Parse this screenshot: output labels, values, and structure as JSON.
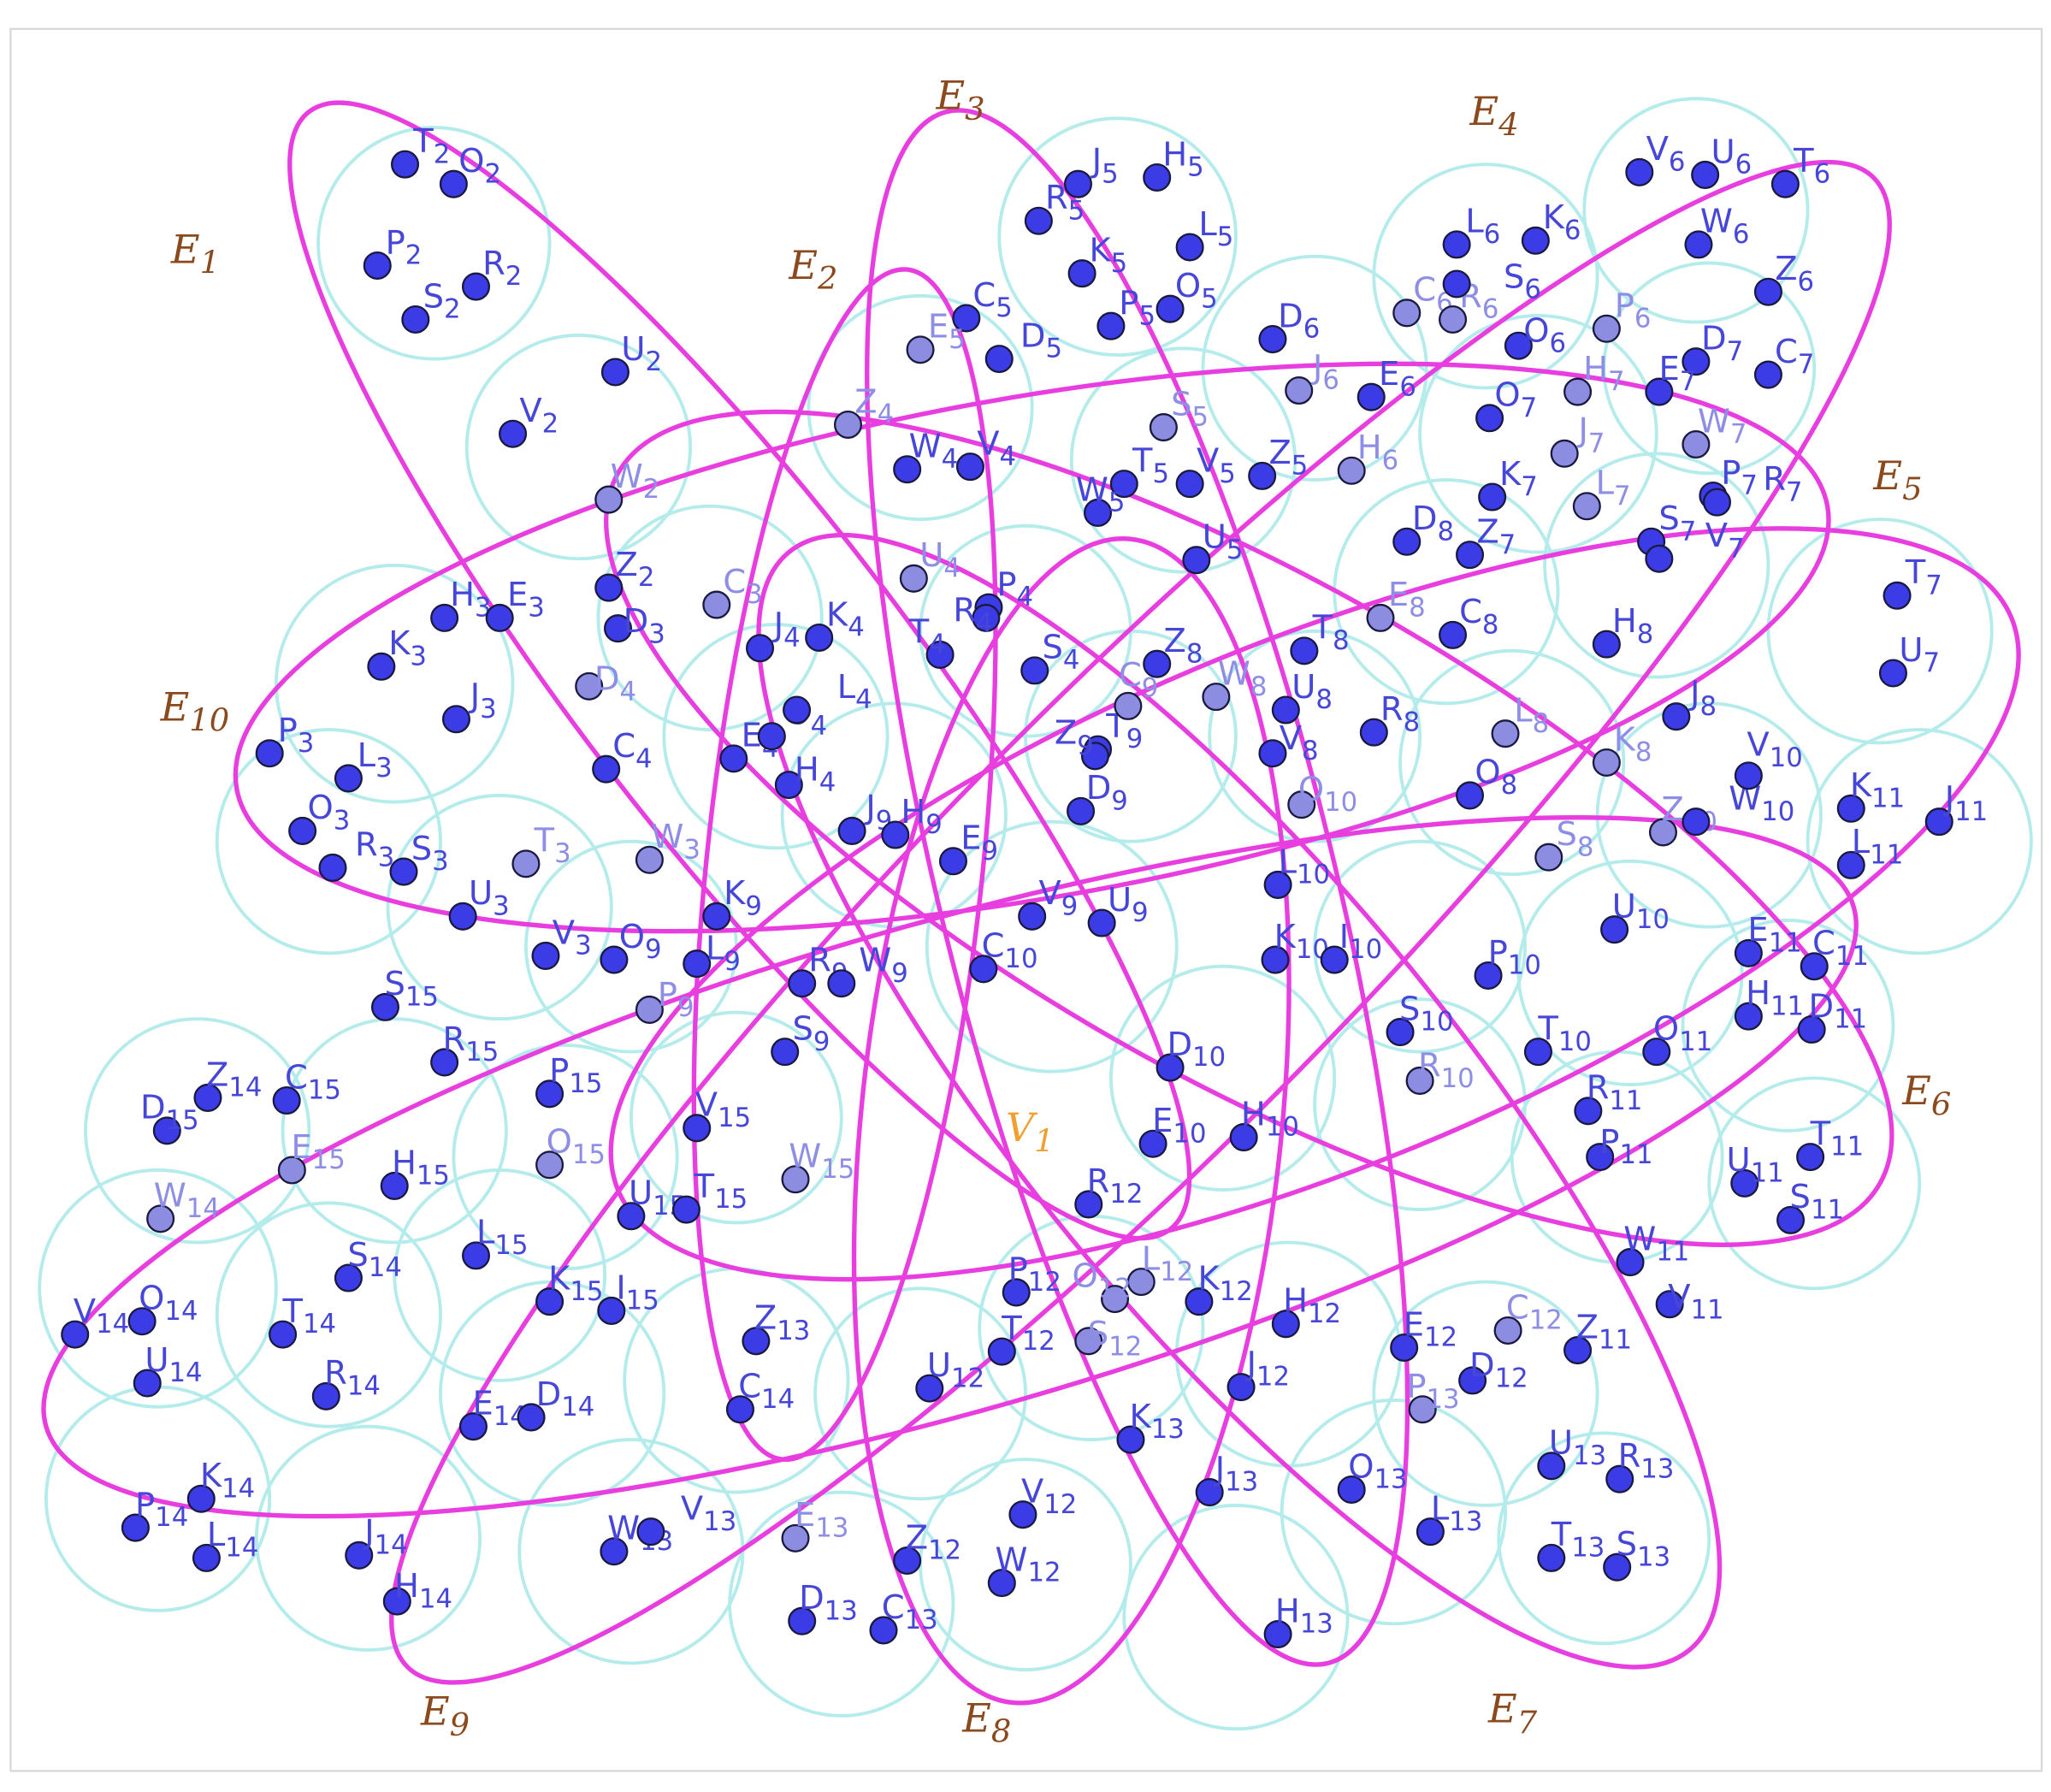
{
  "colors": {
    "hyperedge": "#e83ee0",
    "neighborhood_circle": "#b4ebeb",
    "vertex_dark": "#3c3ce6",
    "vertex_light": "#8c8ce0",
    "label_dark": "#4646d8",
    "label_light": "#8e8ee6",
    "edge_label": "#8b4a1e",
    "center_label": "#f0a030"
  },
  "edges": [
    {
      "letter": "E",
      "index": "1"
    },
    {
      "letter": "E",
      "index": "2"
    },
    {
      "letter": "E",
      "index": "3"
    },
    {
      "letter": "E",
      "index": "4"
    },
    {
      "letter": "E",
      "index": "5"
    },
    {
      "letter": "E",
      "index": "6"
    },
    {
      "letter": "E",
      "index": "7"
    },
    {
      "letter": "E",
      "index": "8"
    },
    {
      "letter": "E",
      "index": "9"
    },
    {
      "letter": "E",
      "index": "10"
    }
  ],
  "center_vertex": {
    "letter": "V",
    "index": "1"
  },
  "vertices": [
    {
      "letter": "T",
      "index": "2",
      "shade": "dark"
    },
    {
      "letter": "O",
      "index": "2",
      "shade": "dark"
    },
    {
      "letter": "P",
      "index": "2",
      "shade": "dark"
    },
    {
      "letter": "S",
      "index": "2",
      "shade": "dark"
    },
    {
      "letter": "R",
      "index": "2",
      "shade": "dark"
    },
    {
      "letter": "U",
      "index": "2",
      "shade": "dark"
    },
    {
      "letter": "V",
      "index": "2",
      "shade": "dark"
    },
    {
      "letter": "W",
      "index": "2",
      "shade": "light"
    },
    {
      "letter": "Z",
      "index": "2",
      "shade": "dark"
    },
    {
      "letter": "D",
      "index": "3",
      "shade": "dark"
    },
    {
      "letter": "D",
      "index": "4",
      "shade": "light"
    },
    {
      "letter": "H",
      "index": "3",
      "shade": "dark"
    },
    {
      "letter": "E",
      "index": "3",
      "shade": "dark"
    },
    {
      "letter": "K",
      "index": "3",
      "shade": "dark"
    },
    {
      "letter": "J",
      "index": "3",
      "shade": "dark"
    },
    {
      "letter": "P",
      "index": "3",
      "shade": "dark"
    },
    {
      "letter": "L",
      "index": "3",
      "shade": "dark"
    },
    {
      "letter": "O",
      "index": "3",
      "shade": "dark"
    },
    {
      "letter": "R",
      "index": "3",
      "shade": "dark"
    },
    {
      "letter": "S",
      "index": "3",
      "shade": "dark"
    },
    {
      "letter": "U",
      "index": "3",
      "shade": "dark"
    },
    {
      "letter": "T",
      "index": "3",
      "shade": "light"
    },
    {
      "letter": "V",
      "index": "3",
      "shade": "dark"
    },
    {
      "letter": "W",
      "index": "3",
      "shade": "light"
    },
    {
      "letter": "C",
      "index": "3",
      "shade": "light"
    },
    {
      "letter": "C",
      "index": "4",
      "shade": "dark"
    },
    {
      "letter": "E",
      "index": "4",
      "shade": "dark"
    },
    {
      "letter": "O",
      "index": "4",
      "shade": "dark"
    },
    {
      "letter": "L",
      "index": "4",
      "shade": "dark"
    },
    {
      "letter": "H",
      "index": "4",
      "shade": "dark"
    },
    {
      "letter": "J",
      "index": "4",
      "shade": "dark"
    },
    {
      "letter": "K",
      "index": "4",
      "shade": "dark"
    },
    {
      "letter": "Z",
      "index": "4",
      "shade": "light"
    },
    {
      "letter": "W",
      "index": "4",
      "shade": "dark"
    },
    {
      "letter": "V",
      "index": "4",
      "shade": "dark"
    },
    {
      "letter": "U",
      "index": "4",
      "shade": "light"
    },
    {
      "letter": "P",
      "index": "4",
      "shade": "dark"
    },
    {
      "letter": "R",
      "index": "4",
      "shade": "dark"
    },
    {
      "letter": "T",
      "index": "4",
      "shade": "dark"
    },
    {
      "letter": "S",
      "index": "4",
      "shade": "dark"
    },
    {
      "letter": "J",
      "index": "5",
      "shade": "dark"
    },
    {
      "letter": "H",
      "index": "5",
      "shade": "dark"
    },
    {
      "letter": "R",
      "index": "5",
      "shade": "dark"
    },
    {
      "letter": "K",
      "index": "5",
      "shade": "dark"
    },
    {
      "letter": "L",
      "index": "5",
      "shade": "dark"
    },
    {
      "letter": "O",
      "index": "5",
      "shade": "dark"
    },
    {
      "letter": "P",
      "index": "5",
      "shade": "dark"
    },
    {
      "letter": "C",
      "index": "5",
      "shade": "dark"
    },
    {
      "letter": "E",
      "index": "5",
      "shade": "light"
    },
    {
      "letter": "D",
      "index": "5",
      "shade": "dark"
    },
    {
      "letter": "S",
      "index": "5",
      "shade": "light"
    },
    {
      "letter": "T",
      "index": "5",
      "shade": "dark"
    },
    {
      "letter": "V",
      "index": "5",
      "shade": "dark"
    },
    {
      "letter": "W",
      "index": "5",
      "shade": "dark"
    },
    {
      "letter": "Z",
      "index": "5",
      "shade": "dark"
    },
    {
      "letter": "U",
      "index": "5",
      "shade": "dark"
    },
    {
      "letter": "V",
      "index": "6",
      "shade": "dark"
    },
    {
      "letter": "U",
      "index": "6",
      "shade": "dark"
    },
    {
      "letter": "T",
      "index": "6",
      "shade": "dark"
    },
    {
      "letter": "W",
      "index": "6",
      "shade": "dark"
    },
    {
      "letter": "L",
      "index": "6",
      "shade": "dark"
    },
    {
      "letter": "K",
      "index": "6",
      "shade": "dark"
    },
    {
      "letter": "Z",
      "index": "6",
      "shade": "dark"
    },
    {
      "letter": "D",
      "index": "6",
      "shade": "dark"
    },
    {
      "letter": "C",
      "index": "6",
      "shade": "light"
    },
    {
      "letter": "R",
      "index": "6",
      "shade": "light"
    },
    {
      "letter": "S",
      "index": "6",
      "shade": "dark"
    },
    {
      "letter": "O",
      "index": "6",
      "shade": "dark"
    },
    {
      "letter": "J",
      "index": "6",
      "shade": "light"
    },
    {
      "letter": "E",
      "index": "6",
      "shade": "dark"
    },
    {
      "letter": "H",
      "index": "6",
      "shade": "light"
    },
    {
      "letter": "P",
      "index": "6",
      "shade": "light"
    },
    {
      "letter": "D",
      "index": "7",
      "shade": "dark"
    },
    {
      "letter": "C",
      "index": "7",
      "shade": "dark"
    },
    {
      "letter": "H",
      "index": "7",
      "shade": "light"
    },
    {
      "letter": "E",
      "index": "7",
      "shade": "dark"
    },
    {
      "letter": "O",
      "index": "7",
      "shade": "dark"
    },
    {
      "letter": "W",
      "index": "7",
      "shade": "light"
    },
    {
      "letter": "J",
      "index": "7",
      "shade": "light"
    },
    {
      "letter": "K",
      "index": "7",
      "shade": "dark"
    },
    {
      "letter": "L",
      "index": "7",
      "shade": "light"
    },
    {
      "letter": "P",
      "index": "7",
      "shade": "dark"
    },
    {
      "letter": "S",
      "index": "7",
      "shade": "dark"
    },
    {
      "letter": "R",
      "index": "7",
      "shade": "dark"
    },
    {
      "letter": "V",
      "index": "7",
      "shade": "dark"
    },
    {
      "letter": "Z",
      "index": "7",
      "shade": "dark"
    },
    {
      "letter": "T",
      "index": "7",
      "shade": "dark"
    },
    {
      "letter": "U",
      "index": "7",
      "shade": "dark"
    },
    {
      "letter": "D",
      "index": "8",
      "shade": "dark"
    },
    {
      "letter": "E",
      "index": "8",
      "shade": "light"
    },
    {
      "letter": "C",
      "index": "8",
      "shade": "dark"
    },
    {
      "letter": "H",
      "index": "8",
      "shade": "dark"
    },
    {
      "letter": "J",
      "index": "8",
      "shade": "dark"
    },
    {
      "letter": "K",
      "index": "8",
      "shade": "light"
    },
    {
      "letter": "T",
      "index": "8",
      "shade": "dark"
    },
    {
      "letter": "U",
      "index": "8",
      "shade": "dark"
    },
    {
      "letter": "W",
      "index": "8",
      "shade": "light"
    },
    {
      "letter": "R",
      "index": "8",
      "shade": "dark"
    },
    {
      "letter": "L",
      "index": "8",
      "shade": "light"
    },
    {
      "letter": "O",
      "index": "8",
      "shade": "dark"
    },
    {
      "letter": "V",
      "index": "8",
      "shade": "dark"
    },
    {
      "letter": "S",
      "index": "8",
      "shade": "light"
    },
    {
      "letter": "Z",
      "index": "8",
      "shade": "dark"
    },
    {
      "letter": "T",
      "index": "9",
      "shade": "dark"
    },
    {
      "letter": "C",
      "index": "9",
      "shade": "light"
    },
    {
      "letter": "Z",
      "index": "9",
      "shade": "dark"
    },
    {
      "letter": "D",
      "index": "9",
      "shade": "dark"
    },
    {
      "letter": "J",
      "index": "9",
      "shade": "dark"
    },
    {
      "letter": "H",
      "index": "9",
      "shade": "dark"
    },
    {
      "letter": "E",
      "index": "9",
      "shade": "dark"
    },
    {
      "letter": "K",
      "index": "9",
      "shade": "dark"
    },
    {
      "letter": "L",
      "index": "9",
      "shade": "dark"
    },
    {
      "letter": "O",
      "index": "9",
      "shade": "dark"
    },
    {
      "letter": "P",
      "index": "9",
      "shade": "light"
    },
    {
      "letter": "R",
      "index": "9",
      "shade": "dark"
    },
    {
      "letter": "W",
      "index": "9",
      "shade": "dark"
    },
    {
      "letter": "S",
      "index": "9",
      "shade": "dark"
    },
    {
      "letter": "U",
      "index": "9",
      "shade": "dark"
    },
    {
      "letter": "V",
      "index": "9",
      "shade": "dark"
    },
    {
      "letter": "C",
      "index": "10",
      "shade": "dark"
    },
    {
      "letter": "O",
      "index": "10",
      "shade": "light"
    },
    {
      "letter": "Z",
      "index": "10",
      "shade": "light"
    },
    {
      "letter": "W",
      "index": "10",
      "shade": "dark"
    },
    {
      "letter": "V",
      "index": "10",
      "shade": "dark"
    },
    {
      "letter": "U",
      "index": "10",
      "shade": "dark"
    },
    {
      "letter": "L",
      "index": "10",
      "shade": "dark"
    },
    {
      "letter": "K",
      "index": "10",
      "shade": "dark"
    },
    {
      "letter": "I",
      "index": "10",
      "shade": "dark"
    },
    {
      "letter": "P",
      "index": "10",
      "shade": "dark"
    },
    {
      "letter": "S",
      "index": "10",
      "shade": "dark"
    },
    {
      "letter": "R",
      "index": "10",
      "shade": "light"
    },
    {
      "letter": "T",
      "index": "10",
      "shade": "dark"
    },
    {
      "letter": "D",
      "index": "10",
      "shade": "dark"
    },
    {
      "letter": "E",
      "index": "10",
      "shade": "dark"
    },
    {
      "letter": "H",
      "index": "10",
      "shade": "dark"
    },
    {
      "letter": "K",
      "index": "11",
      "shade": "dark"
    },
    {
      "letter": "J",
      "index": "11",
      "shade": "dark"
    },
    {
      "letter": "L",
      "index": "11",
      "shade": "dark"
    },
    {
      "letter": "E",
      "index": "11",
      "shade": "dark"
    },
    {
      "letter": "C",
      "index": "11",
      "shade": "dark"
    },
    {
      "letter": "H",
      "index": "11",
      "shade": "dark"
    },
    {
      "letter": "D",
      "index": "11",
      "shade": "dark"
    },
    {
      "letter": "O",
      "index": "11",
      "shade": "dark"
    },
    {
      "letter": "R",
      "index": "11",
      "shade": "dark"
    },
    {
      "letter": "P",
      "index": "11",
      "shade": "dark"
    },
    {
      "letter": "S",
      "index": "11",
      "shade": "dark"
    },
    {
      "letter": "U",
      "index": "11",
      "shade": "dark"
    },
    {
      "letter": "T",
      "index": "11",
      "shade": "dark"
    },
    {
      "letter": "W",
      "index": "11",
      "shade": "dark"
    },
    {
      "letter": "V",
      "index": "11",
      "shade": "dark"
    },
    {
      "letter": "Z",
      "index": "11",
      "shade": "dark"
    },
    {
      "letter": "C",
      "index": "12",
      "shade": "light"
    },
    {
      "letter": "E",
      "index": "12",
      "shade": "dark"
    },
    {
      "letter": "D",
      "index": "12",
      "shade": "dark"
    },
    {
      "letter": "H",
      "index": "12",
      "shade": "dark"
    },
    {
      "letter": "J",
      "index": "12",
      "shade": "dark"
    },
    {
      "letter": "K",
      "index": "12",
      "shade": "dark"
    },
    {
      "letter": "L",
      "index": "12",
      "shade": "light"
    },
    {
      "letter": "O",
      "index": "12",
      "shade": "light"
    },
    {
      "letter": "P",
      "index": "12",
      "shade": "dark"
    },
    {
      "letter": "S",
      "index": "12",
      "shade": "light"
    },
    {
      "letter": "T",
      "index": "12",
      "shade": "dark"
    },
    {
      "letter": "U",
      "index": "12",
      "shade": "dark"
    },
    {
      "letter": "R",
      "index": "12",
      "shade": "dark"
    },
    {
      "letter": "V",
      "index": "12",
      "shade": "dark"
    },
    {
      "letter": "W",
      "index": "12",
      "shade": "dark"
    },
    {
      "letter": "Z",
      "index": "12",
      "shade": "dark"
    },
    {
      "letter": "P",
      "index": "13",
      "shade": "light"
    },
    {
      "letter": "K",
      "index": "13",
      "shade": "dark"
    },
    {
      "letter": "J",
      "index": "13",
      "shade": "dark"
    },
    {
      "letter": "O",
      "index": "13",
      "shade": "dark"
    },
    {
      "letter": "L",
      "index": "13",
      "shade": "dark"
    },
    {
      "letter": "U",
      "index": "13",
      "shade": "dark"
    },
    {
      "letter": "R",
      "index": "13",
      "shade": "dark"
    },
    {
      "letter": "T",
      "index": "13",
      "shade": "dark"
    },
    {
      "letter": "S",
      "index": "13",
      "shade": "dark"
    },
    {
      "letter": "H",
      "index": "13",
      "shade": "dark"
    },
    {
      "letter": "C",
      "index": "13",
      "shade": "dark"
    },
    {
      "letter": "D",
      "index": "13",
      "shade": "dark"
    },
    {
      "letter": "E",
      "index": "13",
      "shade": "light"
    },
    {
      "letter": "W",
      "index": "13",
      "shade": "dark"
    },
    {
      "letter": "V",
      "index": "13",
      "shade": "dark"
    },
    {
      "letter": "Z",
      "index": "13",
      "shade": "dark"
    },
    {
      "letter": "C",
      "index": "14",
      "shade": "dark"
    },
    {
      "letter": "E",
      "index": "14",
      "shade": "dark"
    },
    {
      "letter": "D",
      "index": "14",
      "shade": "dark"
    },
    {
      "letter": "K",
      "index": "14",
      "shade": "dark"
    },
    {
      "letter": "P",
      "index": "14",
      "shade": "dark"
    },
    {
      "letter": "L",
      "index": "14",
      "shade": "dark"
    },
    {
      "letter": "J",
      "index": "14",
      "shade": "dark"
    },
    {
      "letter": "H",
      "index": "14",
      "shade": "dark"
    },
    {
      "letter": "V",
      "index": "14",
      "shade": "dark"
    },
    {
      "letter": "O",
      "index": "14",
      "shade": "dark"
    },
    {
      "letter": "U",
      "index": "14",
      "shade": "dark"
    },
    {
      "letter": "T",
      "index": "14",
      "shade": "dark"
    },
    {
      "letter": "R",
      "index": "14",
      "shade": "dark"
    },
    {
      "letter": "S",
      "index": "14",
      "shade": "dark"
    },
    {
      "letter": "W",
      "index": "14",
      "shade": "light"
    },
    {
      "letter": "Z",
      "index": "14",
      "shade": "dark"
    },
    {
      "letter": "D",
      "index": "15",
      "shade": "dark"
    },
    {
      "letter": "C",
      "index": "15",
      "shade": "dark"
    },
    {
      "letter": "E",
      "index": "15",
      "shade": "light"
    },
    {
      "letter": "H",
      "index": "15",
      "shade": "dark"
    },
    {
      "letter": "S",
      "index": "15",
      "shade": "dark"
    },
    {
      "letter": "R",
      "index": "15",
      "shade": "dark"
    },
    {
      "letter": "P",
      "index": "15",
      "shade": "dark"
    },
    {
      "letter": "O",
      "index": "15",
      "shade": "light"
    },
    {
      "letter": "L",
      "index": "15",
      "shade": "dark"
    },
    {
      "letter": "K",
      "index": "15",
      "shade": "dark"
    },
    {
      "letter": "I",
      "index": "15",
      "shade": "dark"
    },
    {
      "letter": "U",
      "index": "15",
      "shade": "dark"
    },
    {
      "letter": "T",
      "index": "15",
      "shade": "dark"
    },
    {
      "letter": "V",
      "index": "15",
      "shade": "dark"
    },
    {
      "letter": "W",
      "index": "15",
      "shade": "light"
    }
  ]
}
